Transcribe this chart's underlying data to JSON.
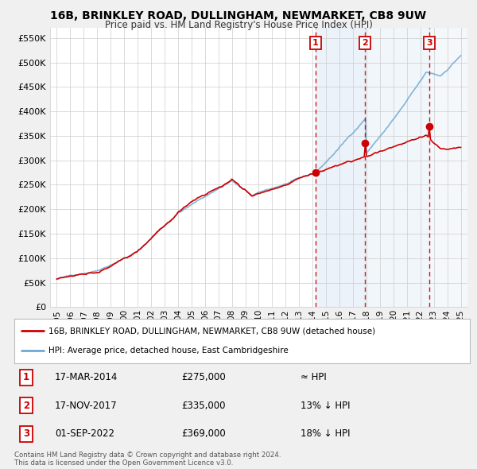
{
  "title": "16B, BRINKLEY ROAD, DULLINGHAM, NEWMARKET, CB8 9UW",
  "subtitle": "Price paid vs. HM Land Registry's House Price Index (HPI)",
  "ylabel_ticks": [
    "£0",
    "£50K",
    "£100K",
    "£150K",
    "£200K",
    "£250K",
    "£300K",
    "£350K",
    "£400K",
    "£450K",
    "£500K",
    "£550K"
  ],
  "ytick_values": [
    0,
    50000,
    100000,
    150000,
    200000,
    250000,
    300000,
    350000,
    400000,
    450000,
    500000,
    550000
  ],
  "ylim": [
    0,
    570000
  ],
  "background_color": "#f0f0f0",
  "plot_bg_color": "#ffffff",
  "hpi_color": "#6fa8d4",
  "price_color": "#cc0000",
  "sale_marker_color": "#cc0000",
  "dashed_line_color": "#cc0000",
  "sale_points": [
    {
      "date_num": 2014.21,
      "price": 275000,
      "label": "1"
    },
    {
      "date_num": 2017.88,
      "price": 335000,
      "label": "2"
    },
    {
      "date_num": 2022.67,
      "price": 369000,
      "label": "3"
    }
  ],
  "legend_entries": [
    {
      "label": "16B, BRINKLEY ROAD, DULLINGHAM, NEWMARKET, CB8 9UW (detached house)",
      "color": "#cc0000",
      "lw": 2
    },
    {
      "label": "HPI: Average price, detached house, East Cambridgeshire",
      "color": "#6fa8d4",
      "lw": 2
    }
  ],
  "table_rows": [
    {
      "num": "1",
      "date": "17-MAR-2014",
      "price": "£275,000",
      "rel": "≈ HPI"
    },
    {
      "num": "2",
      "date": "17-NOV-2017",
      "price": "£335,000",
      "rel": "13% ↓ HPI"
    },
    {
      "num": "3",
      "date": "01-SEP-2022",
      "price": "£369,000",
      "rel": "18% ↓ HPI"
    }
  ],
  "footer": "Contains HM Land Registry data © Crown copyright and database right 2024.\nThis data is licensed under the Open Government Licence v3.0.",
  "xlim_start": 1994.5,
  "xlim_end": 2025.5,
  "xtick_years": [
    1995,
    1996,
    1997,
    1998,
    1999,
    2000,
    2001,
    2002,
    2003,
    2004,
    2005,
    2006,
    2007,
    2008,
    2009,
    2010,
    2011,
    2012,
    2013,
    2014,
    2015,
    2016,
    2017,
    2018,
    2019,
    2020,
    2021,
    2022,
    2023,
    2024,
    2025
  ],
  "span_color": "#deeaf5",
  "span_alpha": 0.6
}
